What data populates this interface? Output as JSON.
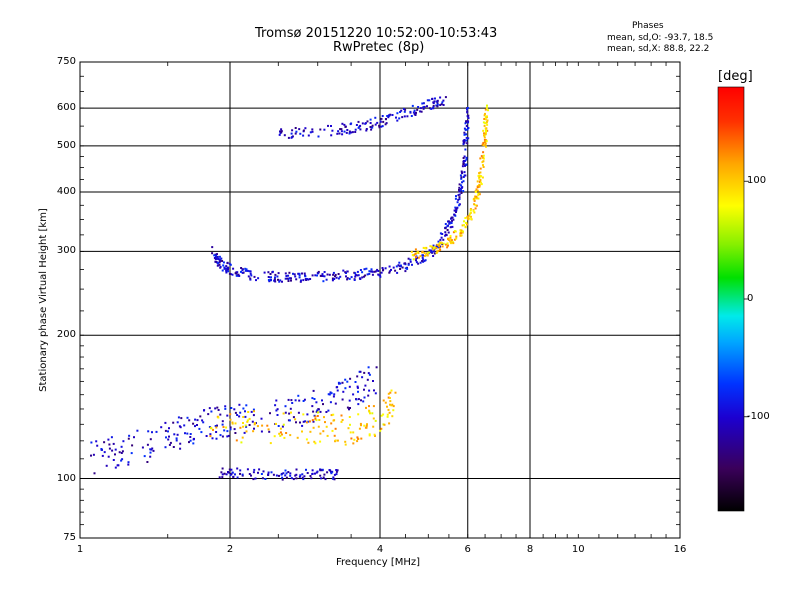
{
  "title_line1": "Tromsø 20151220 10:52:00-10:53:43",
  "title_line2": "RwPretec (8p)",
  "phases": {
    "heading": "Phases",
    "line_o": "mean, sd,O: -93.7, 18.5",
    "line_x": "mean, sd,X:  88.8, 22.2"
  },
  "colorbar": {
    "label": "[deg]",
    "ticks": [
      "100",
      "0",
      "-100"
    ],
    "tick_values": [
      100,
      0,
      -100
    ],
    "range": [
      -180,
      180
    ]
  },
  "chart_data": {
    "type": "scatter",
    "xlabel": "Frequency [MHz]",
    "ylabel": "Stationary phase Virtual Height [km]",
    "x_scale": "log",
    "y_scale": "log",
    "xlim": [
      1,
      16
    ],
    "ylim": [
      75,
      750
    ],
    "x_ticks": [
      "1",
      "2",
      "4",
      "6",
      "8",
      "10",
      "16"
    ],
    "x_tick_values": [
      1,
      2,
      4,
      6,
      8,
      10,
      16
    ],
    "y_ticks": [
      "750",
      "600",
      "500",
      "400",
      "300",
      "200",
      "100",
      "75"
    ],
    "y_tick_values": [
      750,
      600,
      500,
      400,
      300,
      200,
      100,
      75
    ],
    "grid_x": [
      2,
      4,
      6,
      8
    ],
    "grid_y": [
      600,
      500,
      400,
      300,
      200,
      100
    ],
    "series": [
      {
        "trace": "F-layer O-mode trace",
        "phase_deg": -100,
        "points": [
          [
            1.85,
            300
          ],
          [
            1.9,
            285
          ],
          [
            2.0,
            275
          ],
          [
            2.2,
            268
          ],
          [
            2.5,
            265
          ],
          [
            2.8,
            265
          ],
          [
            3.2,
            266
          ],
          [
            3.6,
            268
          ],
          [
            4.0,
            272
          ],
          [
            4.5,
            280
          ],
          [
            5.0,
            295
          ],
          [
            5.3,
            315
          ],
          [
            5.6,
            350
          ],
          [
            5.8,
            400
          ],
          [
            5.9,
            450
          ],
          [
            5.95,
            520
          ],
          [
            6.0,
            600
          ]
        ]
      },
      {
        "trace": "F-layer X-mode trace",
        "phase_deg": 100,
        "points": [
          [
            4.6,
            295
          ],
          [
            5.0,
            300
          ],
          [
            5.4,
            310
          ],
          [
            5.8,
            330
          ],
          [
            6.1,
            360
          ],
          [
            6.3,
            400
          ],
          [
            6.4,
            450
          ],
          [
            6.5,
            520
          ],
          [
            6.55,
            600
          ]
        ]
      },
      {
        "trace": "upper F-layer trace",
        "phase_deg": -100,
        "points": [
          [
            2.5,
            530
          ],
          [
            3.0,
            535
          ],
          [
            3.5,
            545
          ],
          [
            4.0,
            560
          ],
          [
            4.5,
            585
          ],
          [
            5.0,
            610
          ],
          [
            5.4,
            625
          ]
        ]
      },
      {
        "trace": "E/Es-layer O-mode trace",
        "phase_deg": -100,
        "points": [
          [
            1.05,
            110
          ],
          [
            1.2,
            115
          ],
          [
            1.4,
            118
          ],
          [
            1.6,
            125
          ],
          [
            1.8,
            130
          ],
          [
            2.0,
            132
          ],
          [
            2.4,
            135
          ],
          [
            2.8,
            140
          ],
          [
            3.2,
            145
          ],
          [
            3.6,
            155
          ],
          [
            4.0,
            165
          ]
        ]
      },
      {
        "trace": "E/Es-layer X-mode trace",
        "phase_deg": 100,
        "points": [
          [
            1.8,
            125
          ],
          [
            2.2,
            128
          ],
          [
            2.8,
            128
          ],
          [
            3.2,
            127
          ],
          [
            3.6,
            128
          ],
          [
            4.0,
            135
          ],
          [
            4.3,
            145
          ]
        ]
      },
      {
        "trace": "low-height trace",
        "phase_deg": -100,
        "points": [
          [
            1.9,
            103
          ],
          [
            2.2,
            102
          ],
          [
            2.6,
            102
          ],
          [
            3.0,
            102
          ],
          [
            3.3,
            102
          ]
        ]
      }
    ]
  }
}
